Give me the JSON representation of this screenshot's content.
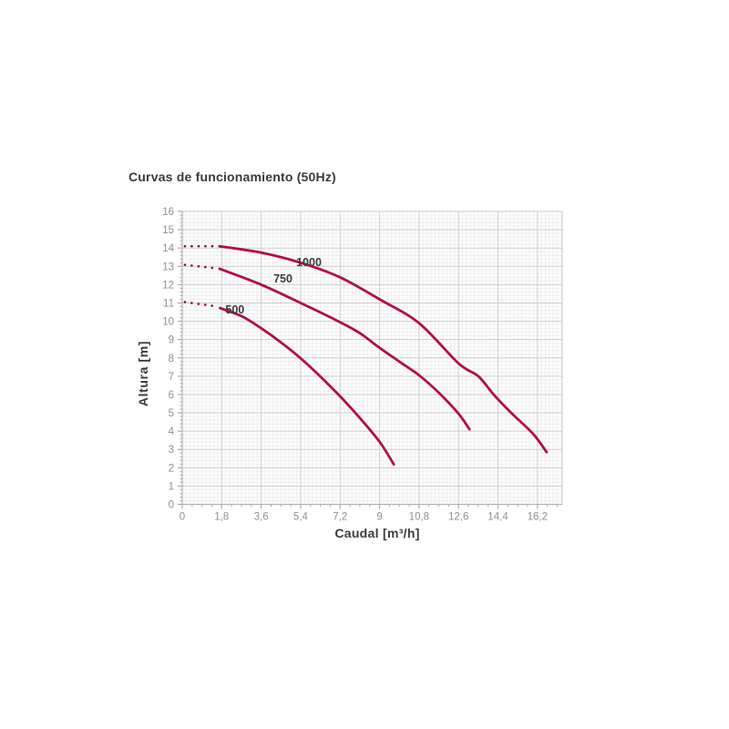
{
  "chart_data": {
    "type": "line",
    "title": "Curvas de funcionamiento (50Hz)",
    "xlabel": "Caudal [m³/h]",
    "ylabel": "Altura [m]",
    "xlim": [
      0,
      17.33
    ],
    "ylim": [
      0,
      16
    ],
    "grid": true,
    "legend_position": "none",
    "x_major_ticks": [
      0,
      1.8,
      3.6,
      5.4,
      7.2,
      9,
      10.8,
      12.6,
      14.4,
      16.2
    ],
    "x_tick_labels": [
      "0",
      "1,8",
      "3,6",
      "5,4",
      "7,2",
      "9",
      "10,8",
      "12,6",
      "14,4",
      "16,2"
    ],
    "x_minor_tick_step": 0.45,
    "x_minor_grid_step": 0.18,
    "y_major_ticks": [
      0,
      1,
      2,
      3,
      4,
      5,
      6,
      7,
      8,
      9,
      10,
      11,
      12,
      13,
      14,
      15,
      16
    ],
    "y_tick_labels": [
      "0",
      "1",
      "2",
      "3",
      "4",
      "5",
      "6",
      "7",
      "8",
      "9",
      "10",
      "11",
      "12",
      "13",
      "14",
      "15",
      "16"
    ],
    "y_minor_tick_step": 0.2,
    "y_minor_grid_step": 0.2,
    "series": [
      {
        "name": "500",
        "label": "500",
        "label_x": 1.97,
        "label_y": 10.42,
        "dotted_lead": [
          [
            0.12,
            11.05
          ],
          [
            1.5,
            10.82
          ]
        ],
        "points": [
          [
            1.72,
            10.72
          ],
          [
            2.7,
            10.28
          ],
          [
            3.6,
            9.62
          ],
          [
            4.5,
            8.85
          ],
          [
            5.4,
            7.98
          ],
          [
            6.3,
            6.98
          ],
          [
            7.2,
            5.9
          ],
          [
            8.1,
            4.72
          ],
          [
            9.0,
            3.42
          ],
          [
            9.65,
            2.18
          ]
        ]
      },
      {
        "name": "750",
        "label": "750",
        "label_x": 4.16,
        "label_y": 12.12,
        "dotted_lead": [
          [
            0.12,
            13.08
          ],
          [
            1.5,
            12.9
          ]
        ],
        "points": [
          [
            1.7,
            12.87
          ],
          [
            3.6,
            12.0
          ],
          [
            5.4,
            11.0
          ],
          [
            7.2,
            9.95
          ],
          [
            8.1,
            9.35
          ],
          [
            9.0,
            8.55
          ],
          [
            9.9,
            7.8
          ],
          [
            10.8,
            7.05
          ],
          [
            11.7,
            6.1
          ],
          [
            12.6,
            4.95
          ],
          [
            13.1,
            4.1
          ]
        ]
      },
      {
        "name": "1000",
        "label": "1000",
        "label_x": 5.2,
        "label_y": 13.02,
        "dotted_lead": [
          [
            0.12,
            14.1
          ],
          [
            1.5,
            14.1
          ]
        ],
        "points": [
          [
            1.7,
            14.1
          ],
          [
            3.6,
            13.75
          ],
          [
            5.4,
            13.2
          ],
          [
            7.2,
            12.4
          ],
          [
            9.0,
            11.2
          ],
          [
            10.8,
            9.9
          ],
          [
            12.6,
            7.7
          ],
          [
            13.5,
            7.0
          ],
          [
            14.2,
            6.0
          ],
          [
            15.0,
            5.0
          ],
          [
            16.0,
            3.85
          ],
          [
            16.62,
            2.85
          ]
        ]
      }
    ],
    "colors": {
      "curve": "#b01040",
      "dotted": "#8c0f32",
      "grid_major": "#cbcbcd",
      "grid_minor": "#efeff1",
      "axis": "#b2b2b4",
      "border": "#c9c9cb",
      "tick": "#a9a9ad",
      "tick_label": "#8f8f94",
      "text": "#3a3a39",
      "plot_bg": "#fefefe"
    }
  }
}
